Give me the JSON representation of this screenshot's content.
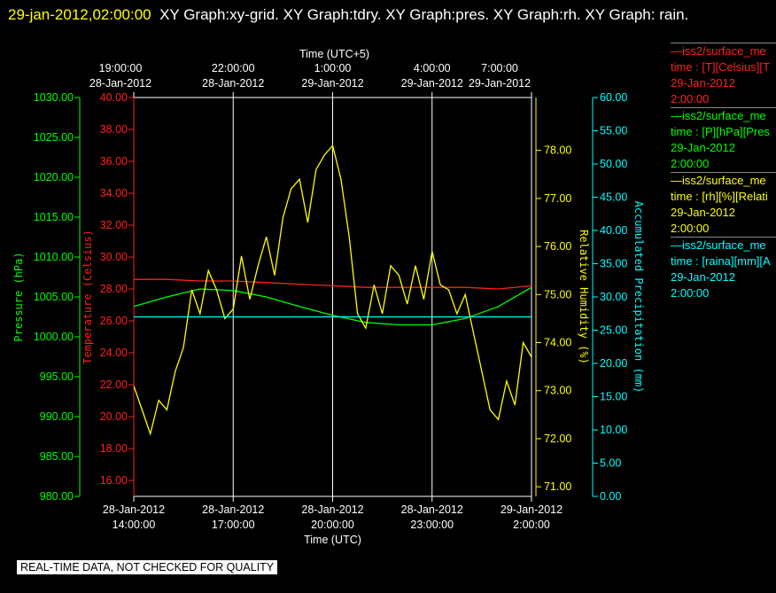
{
  "header": {
    "timestamp": "29-jan-2012,02:00:00",
    "title": "XY Graph:xy-grid.  XY Graph:tdry.  XY Graph:pres.  XY Graph:rh.  XY Graph: rain."
  },
  "footer": "REAL-TIME DATA, NOT CHECKED FOR QUALITY",
  "legend": [
    {
      "line1": "—iss2/surface_me",
      "line2": "time : [T][Celsius][T",
      "line3": "29-Jan-2012",
      "line4": "2:00:00",
      "color": "#ff2020"
    },
    {
      "line1": "—iss2/surface_me",
      "line2": "time : [P][hPa][Pres",
      "line3": "29-Jan-2012",
      "line4": "2:00:00",
      "color": "#00ff00"
    },
    {
      "line1": "—iss2/surface_me",
      "line2": "time : [rh][%][Relati",
      "line3": "29-Jan-2012",
      "line4": "2:00:00",
      "color": "#ffff00"
    },
    {
      "line1": "—iss2/surface_me",
      "line2": "time : [raina][mm][A",
      "line3": "29-Jan-2012",
      "line4": "2:00:00",
      "color": "#00ffff"
    }
  ],
  "chart_data": {
    "type": "line",
    "top_axis": {
      "title": "Time (UTC+5)",
      "ticks": [
        {
          "time": "19:00:00",
          "date": "28-Jan-2012"
        },
        {
          "time": "22:00:00",
          "date": "28-Jan-2012"
        },
        {
          "time": "1:00:00",
          "date": "29-Jan-2012"
        },
        {
          "time": "4:00:00",
          "date": "29-Jan-2012"
        },
        {
          "time": "7:00:00",
          "date": "29-Jan-2012"
        }
      ]
    },
    "bottom_axis": {
      "title": "Time (UTC)",
      "xlim": [
        0,
        12
      ],
      "ticks": [
        {
          "x": 0,
          "date": "28-Jan-2012",
          "time": "14:00:00"
        },
        {
          "x": 3,
          "date": "28-Jan-2012",
          "time": "17:00:00"
        },
        {
          "x": 6,
          "date": "28-Jan-2012",
          "time": "20:00:00"
        },
        {
          "x": 9,
          "date": "28-Jan-2012",
          "time": "23:00:00"
        },
        {
          "x": 12,
          "date": "29-Jan-2012",
          "time": "2:00:00"
        }
      ],
      "note": "x = hours since 28-Jan-2012 14:00:00 UTC"
    },
    "grid": true,
    "axes": {
      "pressure": {
        "label": "Pressure (hPa)",
        "ylim": [
          980,
          1030
        ],
        "ticks": [
          "980.00",
          "985.00",
          "990.00",
          "995.00",
          "1000.00",
          "1005.00",
          "1010.00",
          "1015.00",
          "1020.00",
          "1025.00",
          "1030.00"
        ],
        "color": "#00ff00"
      },
      "temperature": {
        "label": "Temperature (Celsius)",
        "ylim": [
          15,
          40
        ],
        "ticks": [
          "16.00",
          "18.00",
          "20.00",
          "22.00",
          "24.00",
          "26.00",
          "28.00",
          "30.00",
          "32.00",
          "34.00",
          "36.00",
          "38.00",
          "40.00"
        ],
        "color": "#ff2020"
      },
      "humidity": {
        "label": "Relative Humidity (%)",
        "ylim": [
          70.8,
          79.1
        ],
        "ticks": [
          "71.00",
          "72.00",
          "73.00",
          "74.00",
          "75.00",
          "76.00",
          "77.00",
          "78.00"
        ],
        "color": "#ffff00"
      },
      "precip": {
        "label": "Accumulated Precipitation (mm)",
        "ylim": [
          0,
          60
        ],
        "ticks": [
          "0.00",
          "5.00",
          "10.00",
          "15.00",
          "20.00",
          "25.00",
          "30.00",
          "35.00",
          "40.00",
          "45.00",
          "50.00",
          "55.00",
          "60.00"
        ],
        "color": "#00ffff"
      }
    },
    "series": [
      {
        "name": "tdry",
        "axis": "temperature",
        "color": "#ff2020",
        "x": [
          0,
          1,
          2,
          3,
          4,
          5,
          6,
          7,
          8,
          9,
          10,
          11,
          12
        ],
        "y": [
          28.6,
          28.6,
          28.5,
          28.5,
          28.4,
          28.3,
          28.2,
          28.1,
          28.1,
          28.1,
          28.1,
          28.0,
          28.2
        ]
      },
      {
        "name": "pres",
        "axis": "pressure",
        "color": "#00ff00",
        "x": [
          0,
          1,
          2,
          3,
          4,
          5,
          6,
          7,
          8,
          9,
          10,
          11,
          12
        ],
        "y": [
          1003.8,
          1005.0,
          1006.0,
          1005.8,
          1005.0,
          1003.8,
          1002.7,
          1001.8,
          1001.5,
          1001.5,
          1002.3,
          1003.8,
          1006.2
        ]
      },
      {
        "name": "rh",
        "axis": "humidity",
        "color": "#ffff00",
        "x": [
          0,
          0.25,
          0.5,
          0.75,
          1,
          1.25,
          1.5,
          1.75,
          2,
          2.25,
          2.5,
          2.75,
          3,
          3.25,
          3.5,
          3.75,
          4,
          4.25,
          4.5,
          4.75,
          5,
          5.25,
          5.5,
          5.75,
          6,
          6.25,
          6.5,
          6.75,
          7,
          7.25,
          7.5,
          7.75,
          8,
          8.25,
          8.5,
          8.75,
          9,
          9.25,
          9.5,
          9.75,
          10,
          10.25,
          10.5,
          10.75,
          11,
          11.25,
          11.5,
          11.75,
          12
        ],
        "y": [
          73.1,
          72.6,
          72.1,
          72.8,
          72.6,
          73.4,
          73.9,
          75.1,
          74.6,
          75.5,
          75.1,
          74.5,
          74.7,
          75.8,
          74.9,
          75.6,
          76.2,
          75.4,
          76.6,
          77.2,
          77.4,
          76.5,
          77.6,
          77.9,
          78.1,
          77.4,
          76.2,
          74.6,
          74.3,
          75.2,
          74.6,
          75.6,
          75.4,
          74.8,
          75.6,
          74.9,
          75.9,
          75.2,
          75.1,
          74.6,
          75.0,
          74.2,
          73.4,
          72.6,
          72.4,
          73.2,
          72.7,
          74.0,
          73.7
        ]
      },
      {
        "name": "rain",
        "axis": "precip",
        "color": "#00ffff",
        "x": [
          0,
          12
        ],
        "y": [
          27.0,
          27.0
        ]
      }
    ]
  }
}
